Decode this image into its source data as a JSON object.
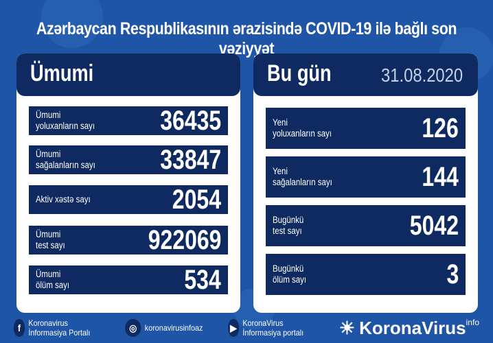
{
  "title": "Azərbaycan Respublikasının ərazisində COVID-19 ilə bağlı son vəziyyət",
  "left": {
    "header": "Ümumi",
    "rows": [
      {
        "label": "Ümumi\nyoluxanların sayı",
        "value": "36435"
      },
      {
        "label": "Ümumi\nsağalanların sayı",
        "value": "33847"
      },
      {
        "label": "Aktiv xəstə sayı",
        "value": "2054"
      },
      {
        "label": "Ümumi\ntest sayı",
        "value": "922069"
      },
      {
        "label": "Ümumi\nölüm sayı",
        "value": "534"
      }
    ]
  },
  "right": {
    "header": "Bu gün",
    "date": "31.08.2020",
    "rows": [
      {
        "label": "Yeni\nyoluxanların sayı",
        "value": "126"
      },
      {
        "label": "Yeni\nsağalanların sayı",
        "value": "144"
      },
      {
        "label": "Bugünkü\ntest sayı",
        "value": "5042"
      },
      {
        "label": "Bugünkü\nölüm sayı",
        "value": "3"
      }
    ]
  },
  "footer": {
    "facebook": "Koronavirus İnformasiya Portalı",
    "instagram": "koronavirusinfoaz",
    "youtube": "KoronaVirus İnformasiya portalı",
    "logo": "KoronaVirus",
    "logo_sup": "info"
  },
  "colors": {
    "background": "#1f55a6",
    "panel": "#0e2a60"
  }
}
